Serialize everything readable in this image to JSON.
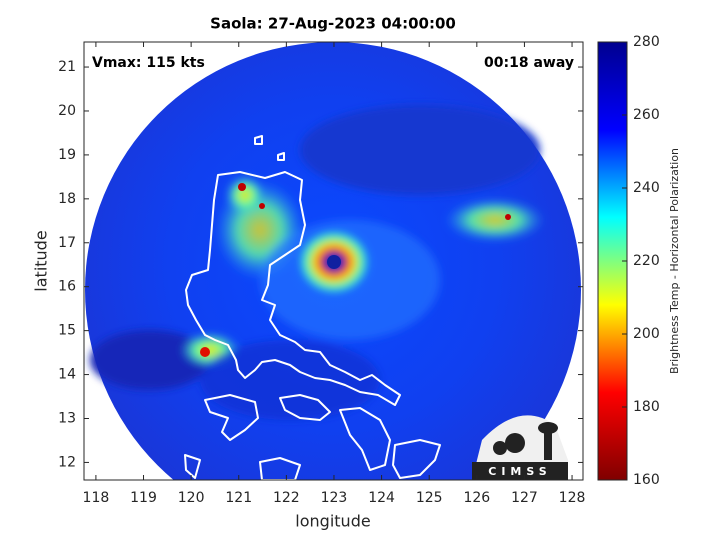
{
  "chart_data": {
    "type": "map",
    "title": "Saola: 27-Aug-2023 04:00:00",
    "xlabel": "longitude",
    "ylabel": "latitude",
    "annotations": [
      "Vmax: 115 kts",
      "00:18 away"
    ],
    "xlim": [
      117.75,
      128.23
    ],
    "xticks": [
      118,
      119,
      120,
      121,
      122,
      123,
      124,
      125,
      126,
      127,
      128
    ],
    "ylim": [
      11.6,
      21.57
    ],
    "yticks": [
      12,
      13,
      14,
      15,
      16,
      17,
      18,
      19,
      20,
      21
    ],
    "colorbar": {
      "label": "Brightness Temp - Horizontal Polarization",
      "lim": [
        160,
        280
      ],
      "ticks": [
        160,
        180,
        200,
        220,
        240,
        260,
        280
      ],
      "colors": [
        "#800000",
        "#ff0000",
        "#ffff00",
        "#00ffff",
        "#0000ff",
        "#00008f"
      ]
    },
    "logo": "CIMSS"
  }
}
